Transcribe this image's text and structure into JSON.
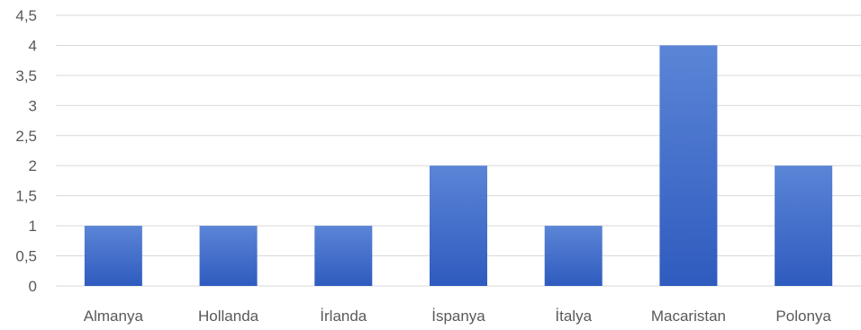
{
  "chart_data": {
    "type": "bar",
    "categories": [
      "Almanya",
      "Hollanda",
      "İrlanda",
      "İspanya",
      "İtalya",
      "Macaristan",
      "Polonya"
    ],
    "series": [
      {
        "values": [
          1,
          1,
          1,
          2,
          1,
          4,
          2
        ]
      }
    ],
    "ylim": [
      0,
      4.5
    ],
    "yticks": [
      "0",
      "0,5",
      "1",
      "1,5",
      "2",
      "2,5",
      "3",
      "3,5",
      "4",
      "4,5"
    ],
    "ytick_values": [
      0,
      0.5,
      1,
      1.5,
      2,
      2.5,
      3,
      3.5,
      4,
      4.5
    ],
    "grid": true,
    "legend": "none",
    "colors": {
      "bar_top": "#5b85d6",
      "bar_bottom": "#2f5bbf",
      "grid": "#d9d9d9",
      "text": "#595959"
    }
  }
}
